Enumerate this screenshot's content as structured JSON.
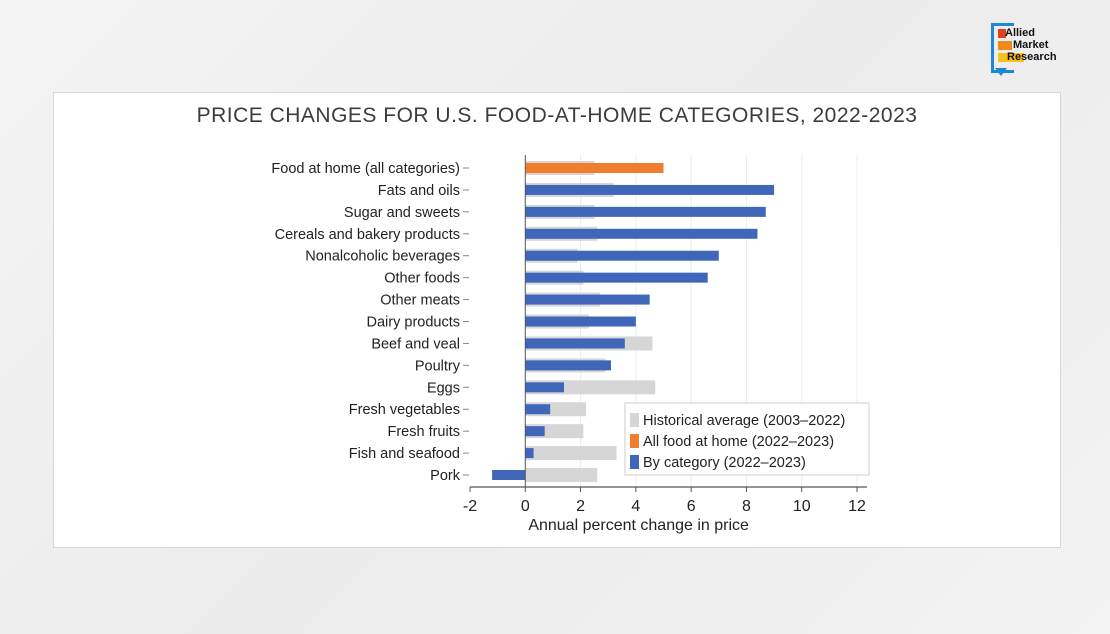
{
  "logo": {
    "line1": "Allied",
    "line2": "Market",
    "line3": "Research"
  },
  "colors": {
    "historical": "#d6d6d6",
    "all_food": "#ee7d2d",
    "category": "#3f66b8"
  },
  "chart_data": {
    "type": "bar",
    "orientation": "horizontal",
    "title": "PRICE CHANGES FOR U.S. FOOD-AT-HOME CATEGORIES, 2022-2023",
    "xlabel": "Annual percent change in price",
    "ylabel": "",
    "xlim": [
      -2,
      12
    ],
    "xticks": [
      "-2",
      "0",
      "2",
      "4",
      "6",
      "8",
      "10",
      "12"
    ],
    "xtick_values": [
      -2,
      0,
      2,
      4,
      6,
      8,
      10,
      12
    ],
    "grid": "vertical",
    "legend_position": "bottom-right",
    "categories": [
      "Food at home (all categories)",
      "Fats and oils",
      "Sugar and sweets",
      "Cereals and bakery products",
      "Nonalcoholic beverages",
      "Other foods",
      "Other meats",
      "Dairy products",
      "Beef and veal",
      "Poultry",
      "Eggs",
      "Fresh vegetables",
      "Fresh fruits",
      "Fish and seafood",
      "Pork"
    ],
    "series": [
      {
        "name": "Historical average (2003–2022)",
        "values": [
          2.5,
          3.2,
          2.5,
          2.6,
          1.9,
          2.1,
          2.7,
          2.3,
          4.6,
          2.9,
          4.7,
          2.2,
          2.1,
          3.3,
          2.6
        ]
      },
      {
        "name": "All food at home (2022–2023)",
        "values": [
          5.0,
          null,
          null,
          null,
          null,
          null,
          null,
          null,
          null,
          null,
          null,
          null,
          null,
          null,
          null
        ]
      },
      {
        "name": "By category (2022–2023)",
        "values": [
          null,
          9.0,
          8.7,
          8.4,
          7.0,
          6.6,
          4.5,
          4.0,
          3.6,
          3.1,
          1.4,
          0.9,
          0.7,
          0.3,
          -1.2
        ]
      }
    ]
  }
}
